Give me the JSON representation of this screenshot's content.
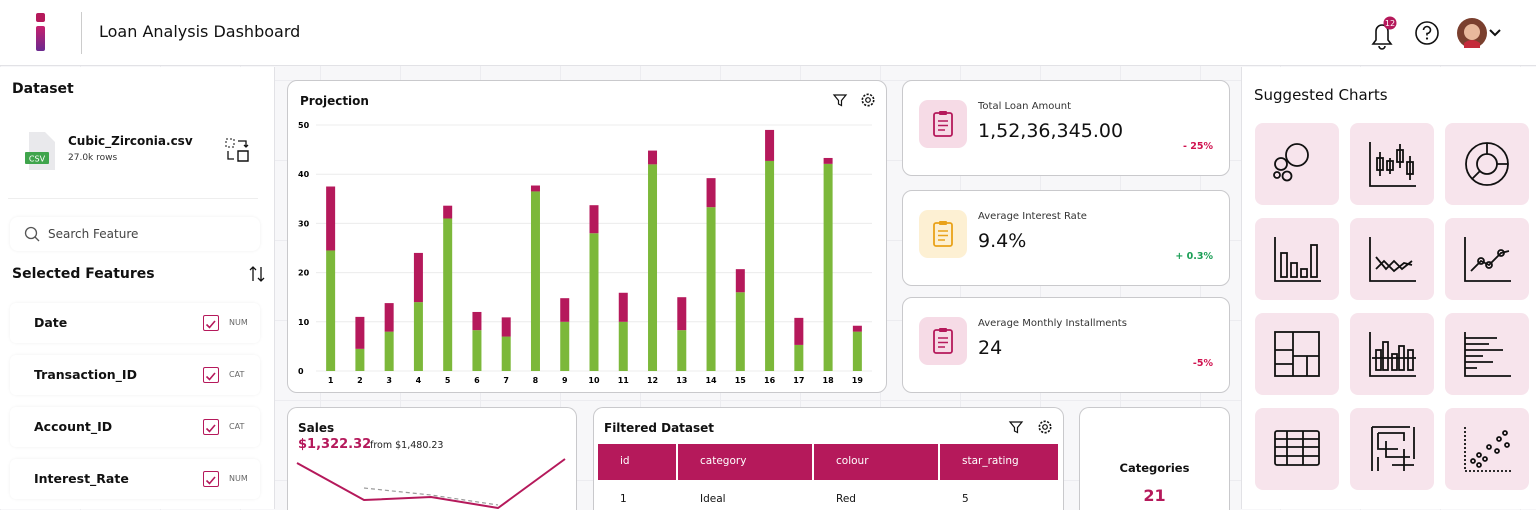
{
  "header": {
    "title": "Loan Analysis Dashboard",
    "notifications": 12
  },
  "dataset": {
    "heading": "Dataset",
    "file_name": "Cubic_Zirconia.csv",
    "file_type": "CSV",
    "rows": "27.0k rows",
    "search_placeholder": "Search Feature"
  },
  "features": {
    "heading": "Selected Features",
    "items": [
      {
        "name": "Date",
        "type": "NUM"
      },
      {
        "name": "Transaction_ID",
        "type": "CAT"
      },
      {
        "name": "Account_ID",
        "type": "CAT"
      },
      {
        "name": "Interest_Rate",
        "type": "NUM"
      }
    ]
  },
  "chart_data": [
    {
      "type": "bar",
      "stacked": true,
      "title": "Projection",
      "categories": [
        "1",
        "2",
        "3",
        "4",
        "5",
        "6",
        "7",
        "8",
        "9",
        "10",
        "11",
        "12",
        "13",
        "14",
        "15",
        "16",
        "17",
        "18",
        "19"
      ],
      "series": [
        {
          "color": "#7cb83a",
          "values": [
            24.5,
            4.5,
            8,
            14,
            31,
            8.3,
            7,
            36.5,
            10,
            28,
            10,
            42,
            8.3,
            33.3,
            16,
            42.7,
            5.3,
            42.1,
            8
          ]
        },
        {
          "color": "#b5195b",
          "values": [
            13,
            6.5,
            5.8,
            10,
            2.6,
            3.7,
            3.9,
            1.2,
            4.8,
            5.7,
            5.9,
            2.8,
            6.7,
            5.9,
            4.7,
            6.3,
            5.5,
            1.2,
            1.2
          ]
        }
      ],
      "ylim": [
        0,
        50
      ],
      "yticks": [
        0,
        10,
        20,
        30,
        40,
        50
      ],
      "grid": true
    },
    {
      "type": "line",
      "title": "Sales",
      "value": "$1,322.32",
      "comparison": "from $1,480.23",
      "series": [
        {
          "color": "#b5195b",
          "values": [
            46,
            9,
            12,
            1,
            50
          ]
        },
        {
          "color": "#9a9a9a",
          "dashed": true,
          "values": [
            null,
            21,
            14,
            4,
            null
          ]
        }
      ]
    }
  ],
  "kpis": [
    {
      "label": "Total Loan Amount",
      "value": "1,52,36,345.00",
      "change": "- 25%",
      "trend": "down"
    },
    {
      "label": "Average Interest Rate",
      "value": "9.4%",
      "change": "+ 0.3%",
      "trend": "up"
    },
    {
      "label": "Average Monthly Installments",
      "value": "24",
      "change": "-5%",
      "trend": "down"
    }
  ],
  "table": {
    "title": "Filtered Dataset",
    "columns": [
      "id",
      "category",
      "colour",
      "star_rating"
    ],
    "rows": [
      [
        1,
        "Ideal",
        "Red",
        5
      ]
    ]
  },
  "categories_card": {
    "label": "Categories",
    "value": 21
  },
  "suggested": {
    "title": "Suggested Charts"
  }
}
